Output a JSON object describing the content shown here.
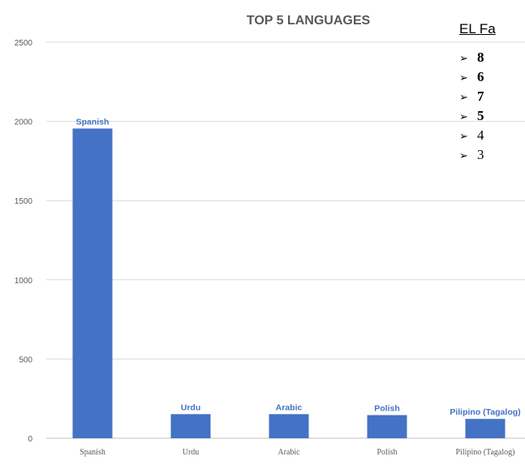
{
  "chart_data": {
    "type": "bar",
    "title": "TOP 5 LANGUAGES",
    "categories": [
      "Spanish",
      "Urdu",
      "Arabic",
      "Polish",
      "Pilipino (Tagalog)"
    ],
    "values": [
      1955,
      152,
      152,
      146,
      122
    ],
    "data_labels": [
      "Spanish",
      "Urdu",
      "Arabic",
      "Polish",
      "Pilipino (Tagalog)"
    ],
    "ylim": [
      0,
      2500
    ],
    "yticks": [
      0,
      500,
      1000,
      1500,
      2000,
      2500
    ],
    "grid": true,
    "legend": "none",
    "bar_color": "#4472c4",
    "label_color": "#4472c4",
    "title_color": "#595959"
  },
  "notes": {
    "title": "EL Fa",
    "items": [
      {
        "text": "8",
        "bold": true
      },
      {
        "text": "6",
        "bold": true
      },
      {
        "text": "7",
        "bold": true
      },
      {
        "text": "5",
        "bold": true
      },
      {
        "text": "4",
        "bold": false
      },
      {
        "text": "3",
        "bold": false
      }
    ],
    "bullet_icon": "arrowhead-bullet-icon"
  }
}
